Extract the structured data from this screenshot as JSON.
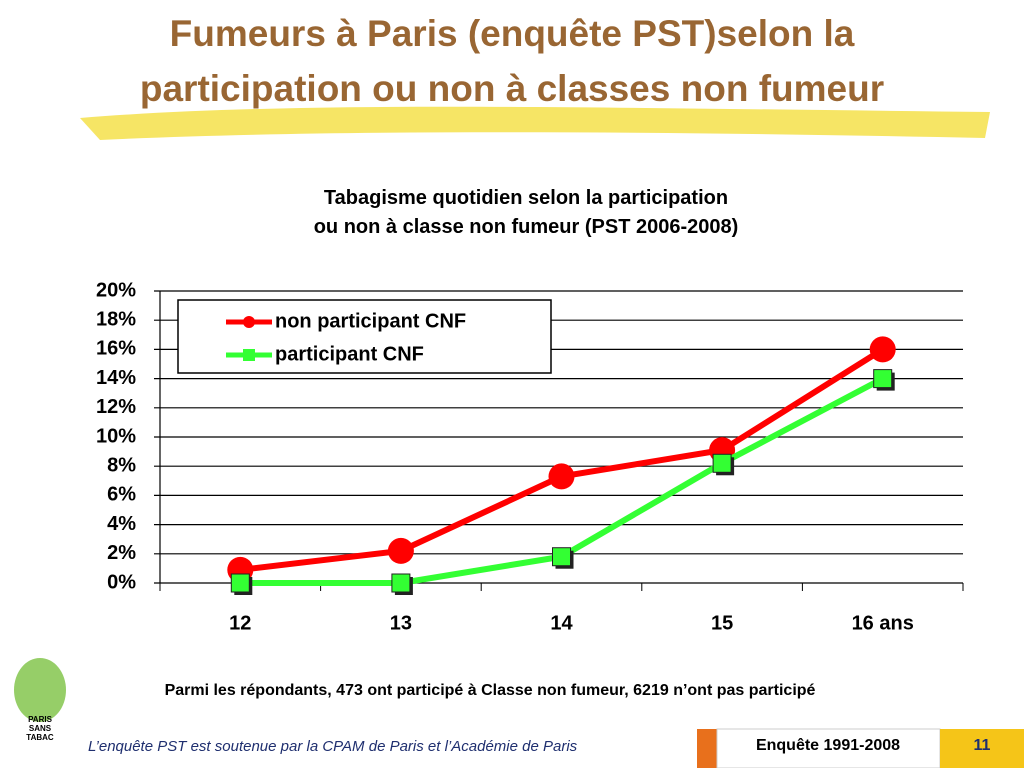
{
  "slide_title": "Fumeurs à Paris (enquête PST)selon la participation ou non à classes non fumeur",
  "chart_data": {
    "type": "line",
    "title": "Tabagisme quotidien selon la participation ou non à classe non fumeur (PST 2006-2008)",
    "categories": [
      "12",
      "13",
      "14",
      "15",
      "16 ans"
    ],
    "series": [
      {
        "name": "non participant CNF",
        "color": "#ff0000",
        "marker": "circle",
        "values": [
          0.9,
          2.2,
          7.3,
          9.1,
          16
        ]
      },
      {
        "name": "participant CNF",
        "color": "#33ff33",
        "marker": "square",
        "values": [
          0,
          0,
          1.8,
          8.2,
          14
        ]
      }
    ],
    "ylim": [
      0,
      20
    ],
    "yticks": [
      {
        "value": 0,
        "label": "0%"
      },
      {
        "value": 2,
        "label": "2%"
      },
      {
        "value": 4,
        "label": "4%"
      },
      {
        "value": 6,
        "label": "6%"
      },
      {
        "value": 8,
        "label": "8%"
      },
      {
        "value": 10,
        "label": "10%"
      },
      {
        "value": 12,
        "label": "12%"
      },
      {
        "value": 14,
        "label": "14%"
      },
      {
        "value": 16,
        "label": "16%"
      },
      {
        "value": 18,
        "label": "18%"
      },
      {
        "value": 20,
        "label": "20%"
      }
    ],
    "grid": true,
    "legend": "top-left"
  },
  "note": "Parmi les répondants, 473 ont participé à Classe non fumeur, 6219 n’ont pas participé",
  "logo": [
    "PARIS",
    "SANS",
    "TABAC"
  ],
  "footer": {
    "credit": "L’enquête PST est soutenue par la CPAM de Paris et l’Académie de Paris",
    "survey": "Enquête 1991-2008",
    "page": "11"
  }
}
